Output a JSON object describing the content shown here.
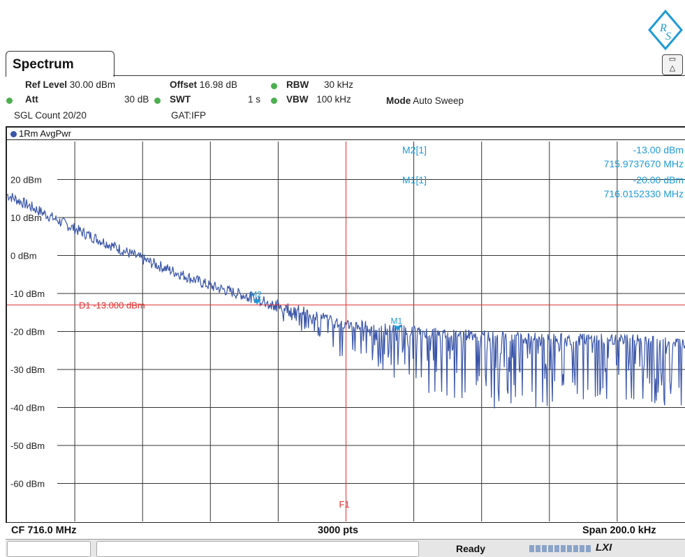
{
  "tab": {
    "title": "Spectrum"
  },
  "header": {
    "ref_level_label": "Ref Level",
    "ref_level_value": "30.00 dBm",
    "offset_label": "Offset",
    "offset_value": "16.98 dB",
    "rbw_label": "RBW",
    "rbw_value": "30 kHz",
    "att_label": "Att",
    "att_value": "30 dB",
    "swt_label": "SWT",
    "swt_value": "1 s",
    "vbw_label": "VBW",
    "vbw_value": "100 kHz",
    "mode_label": "Mode",
    "mode_value": "Auto Sweep",
    "sgl_count": "SGL Count 20/20",
    "gat": "GAT:IFP"
  },
  "trace": {
    "label": "1Rm AvgPwr",
    "color": "#3a55a8"
  },
  "markers": {
    "m2_label": "M2[1]",
    "m2_level": "-13.00 dBm",
    "m2_freq": "715.9737670 MHz",
    "m1_label": "M1[1]",
    "m1_level": "-20.00 dBm",
    "m1_freq": "716.0152330 MHz"
  },
  "display_line": {
    "label": "D1 -13.000 dBm"
  },
  "frequency_line": {
    "label": "F1"
  },
  "footer": {
    "cf": "CF 716.0 MHz",
    "pts": "3000 pts",
    "span": "Span 200.0 kHz"
  },
  "status": {
    "text": "Ready"
  },
  "colors": {
    "marker": "#1f9ad6",
    "limit": "#e03030",
    "grid": "#333333",
    "trace": "#3a55a8"
  },
  "chart_data": {
    "type": "line",
    "title": "",
    "xlabel": "",
    "ylabel": "",
    "x_range_mhz": [
      715.9,
      716.1
    ],
    "ylim": [
      -70,
      30
    ],
    "y_ticks": [
      20,
      10,
      0,
      -10,
      -20,
      -30,
      -40,
      -50,
      -60
    ],
    "y_tick_labels": [
      "20 dBm",
      "10 dBm",
      "0 dBm",
      "-10 dBm",
      "-20 dBm",
      "-30 dBm",
      "-40 dBm",
      "-50 dBm",
      "-60 dBm"
    ],
    "grid": true,
    "series": [
      {
        "name": "1Rm AvgPwr",
        "x": [
          715.9,
          715.92,
          715.94,
          715.96,
          715.98,
          716.0,
          716.02,
          716.04,
          716.06,
          716.08,
          716.1
        ],
        "values": [
          16,
          7,
          -1,
          -8,
          -13,
          -18,
          -20,
          -21,
          -22,
          -22,
          -23
        ]
      }
    ],
    "markers": [
      {
        "name": "M2",
        "x": 715.973767,
        "y": -13.0
      },
      {
        "name": "M1",
        "x": 716.015233,
        "y": -20.0
      }
    ],
    "display_line": {
      "name": "D1",
      "y": -13.0
    },
    "frequency_line": {
      "name": "F1",
      "x": 716.0
    }
  }
}
